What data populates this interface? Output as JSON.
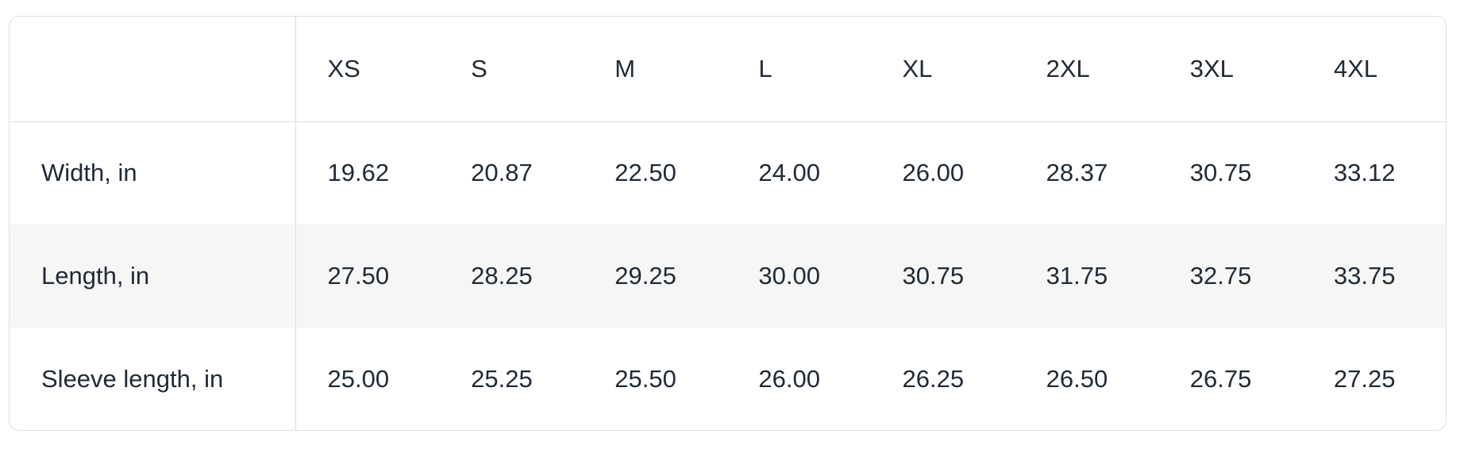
{
  "colors": {
    "text": "#212b36",
    "border_outer": "#dfdfdf",
    "border_inner": "#dcdcdc",
    "stripe": "#f6f6f6",
    "bg": "#ffffff"
  },
  "chart_data": {
    "type": "table",
    "columns": [
      "",
      "XS",
      "S",
      "M",
      "L",
      "XL",
      "2XL",
      "3XL",
      "4XL"
    ],
    "rows": [
      {
        "label": "Width, in",
        "values": [
          "19.62",
          "20.87",
          "22.50",
          "24.00",
          "26.00",
          "28.37",
          "30.75",
          "33.12"
        ]
      },
      {
        "label": "Length, in",
        "values": [
          "27.50",
          "28.25",
          "29.25",
          "30.00",
          "30.75",
          "31.75",
          "32.75",
          "33.75"
        ]
      },
      {
        "label": "Sleeve length, in",
        "values": [
          "25.00",
          "25.25",
          "25.50",
          "26.00",
          "26.25",
          "26.50",
          "26.75",
          "27.25"
        ]
      }
    ],
    "layout": {
      "legend": "none",
      "grid": "single-vertical-divider-after-label-column, single-horizontal-divider-below-header",
      "striped_row_index": 1
    }
  }
}
